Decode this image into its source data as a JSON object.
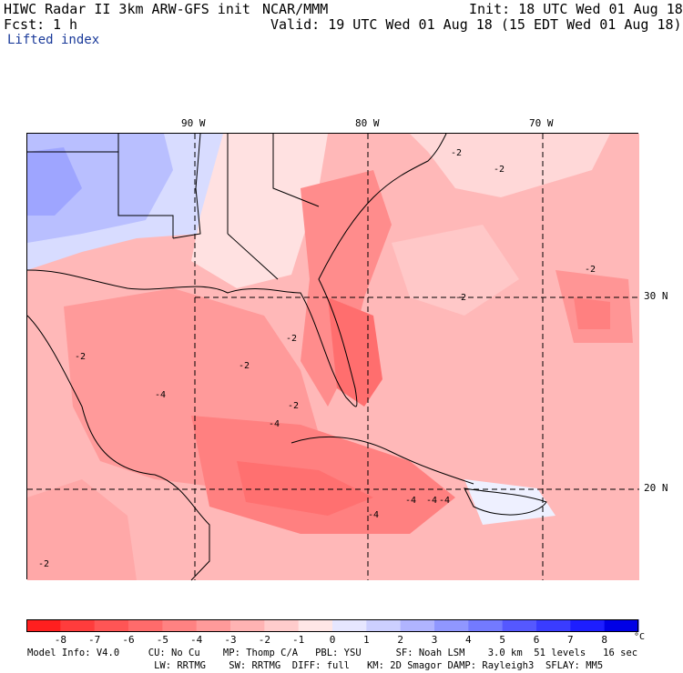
{
  "header": {
    "title": "HIWC Radar II 3km ARW-GFS init",
    "source": "NCAR/MMM",
    "init": "Init: 18 UTC Wed 01 Aug 18",
    "fcst_label": "Fcst:",
    "fcst_value": "1 h",
    "valid": "Valid: 19 UTC Wed 01 Aug 18 (15 EDT Wed 01 Aug 18)",
    "field": "Lifted index"
  },
  "map": {
    "longitudes": [
      "90 W",
      "80 W",
      "70 W"
    ],
    "latitudes": [
      "30 N",
      "20 N"
    ],
    "contour_labels": [
      "-2",
      "-2",
      "-2",
      "-2",
      "-2",
      "-2",
      "-2",
      "-2",
      "-4",
      "-4",
      "-4",
      "-4",
      "-4",
      "-4",
      "-2"
    ]
  },
  "legend": {
    "ticks": [
      "-8",
      "-7",
      "-6",
      "-5",
      "-4",
      "-3",
      "-2",
      "-1",
      "0",
      "1",
      "2",
      "3",
      "4",
      "5",
      "6",
      "7",
      "8"
    ],
    "unit": "°C",
    "colors": [
      "#ff1f1f",
      "#ff3c3c",
      "#ff5555",
      "#ff6b6b",
      "#ff8282",
      "#ff9a9a",
      "#ffb3b3",
      "#ffcccc",
      "#ffe6e6",
      "#e6e6ff",
      "#cccfff",
      "#b0b4ff",
      "#9097ff",
      "#737aff",
      "#5558ff",
      "#3a3cff",
      "#1d1eff",
      "#0000e6"
    ]
  },
  "footer": {
    "line1": "Model Info: V4.0     CU: No Cu    MP: Thomp C/A   PBL: YSU      SF: Noah LSM    3.0 km  51 levels   16 sec",
    "line2": "                      LW: RRTMG    SW: RRTMG  DIFF: full   KM: 2D Smagor DAMP: Rayleigh3  SFLAY: MM5"
  }
}
